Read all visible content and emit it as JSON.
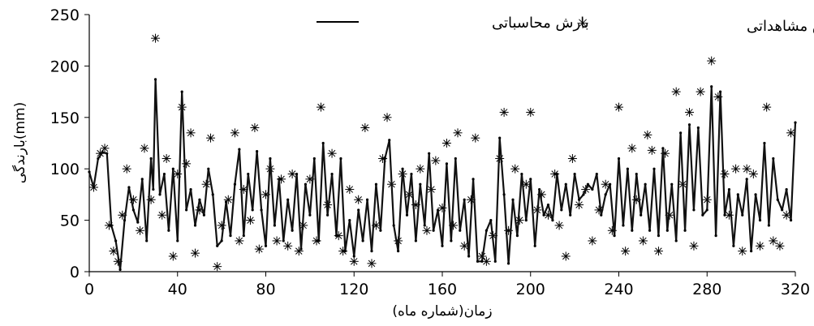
{
  "chart_data": {
    "type": "line",
    "title": "",
    "xlabel": "زمان(شماره ماه)",
    "ylabel": "بارندگی(mm)",
    "xlim": [
      0,
      320
    ],
    "ylim": [
      0,
      250
    ],
    "x_ticks": [
      "0",
      "40",
      "80",
      "120",
      "160",
      "200",
      "240",
      "280",
      "320"
    ],
    "y_ticks": [
      "0",
      "50",
      "100",
      "150",
      "200",
      "250"
    ],
    "grid": false,
    "legend": {
      "position": "top",
      "entries": [
        "بارش محاسباتی",
        "بارش مشاهداتی"
      ]
    },
    "series": [
      {
        "name": "بارش محاسباتی",
        "style": "line",
        "color": "#000000",
        "x": [
          0,
          2,
          4,
          6,
          8,
          10,
          12,
          14,
          16,
          18,
          20,
          22,
          24,
          26,
          28,
          29,
          30,
          32,
          34,
          36,
          38,
          40,
          42,
          44,
          46,
          48,
          50,
          52,
          54,
          56,
          58,
          60,
          62,
          64,
          66,
          68,
          70,
          72,
          74,
          76,
          78,
          80,
          82,
          84,
          86,
          88,
          90,
          92,
          94,
          96,
          98,
          100,
          102,
          104,
          106,
          108,
          110,
          112,
          114,
          116,
          118,
          120,
          122,
          124,
          126,
          128,
          130,
          132,
          134,
          136,
          138,
          140,
          142,
          144,
          146,
          148,
          150,
          152,
          154,
          156,
          158,
          160,
          162,
          164,
          166,
          168,
          170,
          172,
          174,
          176,
          178,
          180,
          182,
          184,
          186,
          188,
          190,
          192,
          194,
          196,
          198,
          200,
          202,
          204,
          206,
          208,
          210,
          212,
          214,
          216,
          218,
          220,
          222,
          224,
          226,
          228,
          230,
          232,
          234,
          236,
          238,
          240,
          242,
          244,
          246,
          248,
          250,
          252,
          254,
          256,
          258,
          260,
          262,
          264,
          266,
          268,
          270,
          272,
          274,
          276,
          278,
          280,
          282,
          284,
          286,
          288,
          290,
          292,
          294,
          296,
          298,
          300,
          302,
          304,
          306,
          308,
          310,
          312,
          314,
          316,
          318,
          320
        ],
        "y": [
          97,
          82,
          110,
          116,
          115,
          45,
          30,
          2,
          50,
          82,
          60,
          48,
          90,
          30,
          110,
          80,
          187,
          75,
          95,
          40,
          100,
          30,
          175,
          60,
          80,
          45,
          70,
          55,
          100,
          75,
          25,
          30,
          68,
          35,
          85,
          119,
          35,
          95,
          60,
          117,
          60,
          25,
          110,
          45,
          90,
          30,
          70,
          40,
          95,
          22,
          85,
          55,
          110,
          30,
          125,
          55,
          95,
          35,
          110,
          20,
          50,
          15,
          60,
          30,
          70,
          20,
          85,
          40,
          110,
          128,
          45,
          20,
          100,
          55,
          95,
          30,
          85,
          45,
          115,
          40,
          60,
          25,
          105,
          30,
          110,
          40,
          70,
          15,
          90,
          10,
          10,
          40,
          50,
          10,
          130,
          75,
          8,
          70,
          35,
          95,
          50,
          90,
          25,
          80,
          55,
          65,
          50,
          95,
          60,
          85,
          55,
          95,
          70,
          75,
          85,
          80,
          95,
          55,
          75,
          85,
          35,
          110,
          45,
          100,
          40,
          95,
          55,
          85,
          40,
          100,
          35,
          120,
          40,
          85,
          30,
          135,
          40,
          143,
          60,
          140,
          55,
          60,
          180,
          35,
          175,
          55,
          80,
          25,
          75,
          55,
          90,
          20,
          75,
          50,
          125,
          45,
          110,
          70,
          60,
          80,
          50,
          145
        ]
      },
      {
        "name": "بارش مشاهداتی",
        "style": "markers",
        "marker": "asterisk",
        "color": "#000000",
        "x": [
          2,
          5,
          7,
          9,
          11,
          13,
          15,
          17,
          20,
          23,
          25,
          28,
          30,
          33,
          35,
          38,
          40,
          42,
          44,
          46,
          48,
          50,
          53,
          55,
          58,
          60,
          63,
          66,
          68,
          70,
          73,
          75,
          77,
          80,
          82,
          85,
          87,
          90,
          92,
          95,
          97,
          100,
          103,
          105,
          108,
          110,
          113,
          115,
          118,
          120,
          122,
          125,
          128,
          130,
          133,
          135,
          137,
          140,
          142,
          145,
          148,
          150,
          153,
          155,
          157,
          160,
          162,
          165,
          167,
          170,
          173,
          175,
          178,
          180,
          183,
          186,
          188,
          190,
          193,
          195,
          198,
          200,
          203,
          205,
          208,
          211,
          213,
          216,
          219,
          222,
          225,
          228,
          231,
          234,
          237,
          240,
          243,
          246,
          248,
          251,
          253,
          255,
          258,
          261,
          263,
          266,
          269,
          272,
          274,
          277,
          280,
          282,
          285,
          288,
          290,
          293,
          296,
          298,
          301,
          304,
          307,
          310,
          313,
          316,
          318
        ],
        "y": [
          82,
          115,
          120,
          45,
          20,
          10,
          55,
          100,
          70,
          40,
          120,
          70,
          227,
          55,
          110,
          15,
          95,
          160,
          105,
          135,
          18,
          60,
          85,
          130,
          5,
          45,
          70,
          135,
          30,
          80,
          50,
          140,
          22,
          75,
          100,
          30,
          90,
          25,
          95,
          20,
          45,
          90,
          30,
          160,
          65,
          115,
          35,
          20,
          80,
          10,
          70,
          140,
          8,
          45,
          110,
          150,
          85,
          30,
          95,
          75,
          65,
          100,
          40,
          80,
          108,
          62,
          125,
          45,
          135,
          25,
          70,
          130,
          15,
          10,
          35,
          110,
          155,
          40,
          100,
          50,
          85,
          155,
          60,
          75,
          55,
          95,
          45,
          15,
          110,
          65,
          80,
          30,
          60,
          85,
          40,
          160,
          20,
          120,
          70,
          30,
          133,
          118,
          20,
          115,
          55,
          175,
          85,
          155,
          25,
          175,
          70,
          205,
          170,
          95,
          55,
          100,
          20,
          100,
          95,
          25,
          160,
          30,
          25,
          55,
          135
        ]
      }
    ]
  }
}
